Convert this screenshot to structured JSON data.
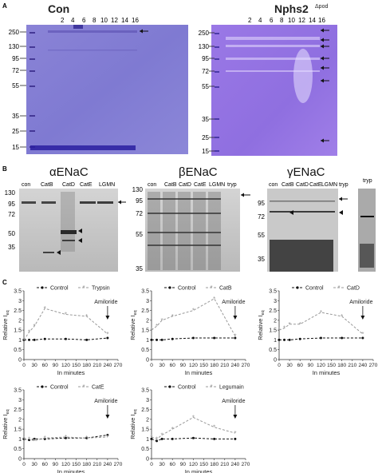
{
  "panel_a": {
    "letter": "A",
    "con": {
      "title": "Con",
      "lanes": [
        "2",
        "4",
        "6",
        "8",
        "10",
        "12",
        "14",
        "16"
      ],
      "markers": [
        "250",
        "130",
        "95",
        "72",
        "55",
        "35",
        "25",
        "15"
      ]
    },
    "nphs": {
      "title": "Nphs2",
      "title_sup": "Δpod",
      "lanes": [
        "2",
        "4",
        "6",
        "8",
        "10",
        "12",
        "14",
        "16"
      ],
      "markers": [
        "250",
        "130",
        "95",
        "72",
        "55",
        "35",
        "25",
        "15"
      ]
    }
  },
  "panel_b": {
    "letter": "B",
    "alpha": {
      "title": "αENaC",
      "lanes": [
        "con",
        "CatB",
        "CatD",
        "CatE",
        "LGMN"
      ],
      "markers": [
        "130",
        "95",
        "72",
        "50",
        "35"
      ]
    },
    "beta": {
      "title": "βENaC",
      "lanes": [
        "con",
        "CatB",
        "CatD",
        "CatE",
        "LGMN",
        "tryp"
      ],
      "markers": [
        "130",
        "95",
        "72",
        "55",
        "35"
      ]
    },
    "gamma": {
      "title": "γENaC",
      "lanes": [
        "con",
        "CatB",
        "CatD",
        "CatE",
        "LGMN",
        "tryp"
      ],
      "lane_extra": "tryp",
      "markers": [
        "95",
        "72",
        "55",
        "35"
      ]
    }
  },
  "panel_c": {
    "letter": "C"
  },
  "chart_data": [
    {
      "type": "line",
      "xlabel": "In minutes",
      "ylabel": "Relative I",
      "ylabel_sub": "eq",
      "ylim": [
        0,
        3.5
      ],
      "yticks": [
        "0",
        "0.5",
        "1",
        "1.5",
        "2",
        "2.5",
        "3",
        "3.5"
      ],
      "xticks": [
        "0",
        "30",
        "60",
        "90",
        "120",
        "150",
        "180",
        "210",
        "240",
        "270"
      ],
      "xlim": [
        0,
        270
      ],
      "annotation": "Amiloride",
      "series": [
        {
          "name": "Control",
          "x": [
            0,
            15,
            30,
            60,
            120,
            180,
            240
          ],
          "y": [
            1.0,
            1.0,
            1.0,
            1.05,
            1.05,
            1.0,
            1.1
          ],
          "color": "#111111"
        },
        {
          "name": "Trypsin",
          "x": [
            0,
            15,
            30,
            60,
            120,
            180,
            240
          ],
          "y": [
            1.0,
            1.4,
            1.7,
            2.6,
            2.3,
            2.2,
            1.3
          ],
          "color": "#999999"
        }
      ]
    },
    {
      "type": "line",
      "xlabel": "In minutes",
      "ylabel": "Relative I",
      "ylabel_sub": "eq",
      "ylim": [
        0,
        3.5
      ],
      "yticks": [
        "0",
        "0.5",
        "1",
        "1.5",
        "2",
        "2.5",
        "3",
        "3.5"
      ],
      "xticks": [
        "0",
        "30",
        "60",
        "90",
        "120",
        "150",
        "180",
        "210",
        "240",
        "270"
      ],
      "xlim": [
        0,
        270
      ],
      "annotation": "Amiloride",
      "series": [
        {
          "name": "Control",
          "x": [
            0,
            15,
            30,
            60,
            120,
            180,
            240
          ],
          "y": [
            1.0,
            1.0,
            1.0,
            1.05,
            1.1,
            1.1,
            1.1
          ],
          "color": "#111111"
        },
        {
          "name": "CatB",
          "x": [
            0,
            15,
            30,
            60,
            120,
            180,
            240
          ],
          "y": [
            1.5,
            1.7,
            2.0,
            2.2,
            2.5,
            3.1,
            1.2
          ],
          "color": "#999999"
        }
      ]
    },
    {
      "type": "line",
      "xlabel": "In minutes",
      "ylabel": "Relative I",
      "ylabel_sub": "eq",
      "ylim": [
        0,
        3.5
      ],
      "yticks": [
        "0",
        "0.5",
        "1",
        "1.5",
        "2",
        "2.5",
        "3",
        "3.5"
      ],
      "xticks": [
        "0",
        "30",
        "60",
        "90",
        "120",
        "150",
        "180",
        "210",
        "240",
        "270"
      ],
      "xlim": [
        0,
        270
      ],
      "annotation": "Amiloride",
      "series": [
        {
          "name": "Control",
          "x": [
            0,
            15,
            30,
            60,
            120,
            180,
            240
          ],
          "y": [
            1.0,
            1.0,
            1.0,
            1.05,
            1.1,
            1.1,
            1.1
          ],
          "color": "#111111"
        },
        {
          "name": "CatD",
          "x": [
            0,
            15,
            30,
            60,
            120,
            180,
            240
          ],
          "y": [
            1.5,
            1.6,
            1.8,
            1.8,
            2.4,
            2.2,
            1.3
          ],
          "color": "#999999"
        }
      ]
    },
    {
      "type": "line",
      "xlabel": "In minutes",
      "ylabel": "Relative I",
      "ylabel_sub": "eq",
      "ylim": [
        0,
        3.5
      ],
      "yticks": [
        "0",
        "0.5",
        "1",
        "1.5",
        "2",
        "2.5",
        "3",
        "3.5"
      ],
      "xticks": [
        "0",
        "30",
        "60",
        "90",
        "120",
        "150",
        "180",
        "210",
        "240",
        "270"
      ],
      "xlim": [
        0,
        270
      ],
      "annotation": "Amiloride",
      "series": [
        {
          "name": "Control",
          "x": [
            0,
            15,
            30,
            60,
            120,
            180,
            240
          ],
          "y": [
            1.0,
            0.95,
            1.0,
            1.0,
            1.05,
            1.05,
            1.2
          ],
          "color": "#111111"
        },
        {
          "name": "CatE",
          "x": [
            0,
            15,
            30,
            60,
            120,
            180,
            240
          ],
          "y": [
            1.0,
            1.0,
            0.9,
            1.05,
            1.1,
            1.05,
            1.1
          ],
          "color": "#999999"
        }
      ]
    },
    {
      "type": "line",
      "xlabel": "In minutes",
      "ylabel": "Relative I",
      "ylabel_sub": "eq",
      "ylim": [
        0,
        3.5
      ],
      "yticks": [
        "0",
        "0.5",
        "1",
        "1.5",
        "2",
        "2.5",
        "3",
        "3.5"
      ],
      "xticks": [
        "0",
        "30",
        "60",
        "90",
        "120",
        "150",
        "180",
        "210",
        "240",
        "270"
      ],
      "xlim": [
        0,
        270
      ],
      "annotation": "Amiloride",
      "series": [
        {
          "name": "Control",
          "x": [
            0,
            15,
            30,
            60,
            120,
            180,
            240
          ],
          "y": [
            1.0,
            0.9,
            1.0,
            1.0,
            1.05,
            1.0,
            1.0
          ],
          "color": "#111111"
        },
        {
          "name": "Legumain",
          "x": [
            0,
            15,
            30,
            60,
            120,
            180,
            240
          ],
          "y": [
            1.1,
            1.0,
            1.2,
            1.5,
            2.1,
            1.6,
            1.3
          ],
          "color": "#999999"
        }
      ]
    }
  ]
}
